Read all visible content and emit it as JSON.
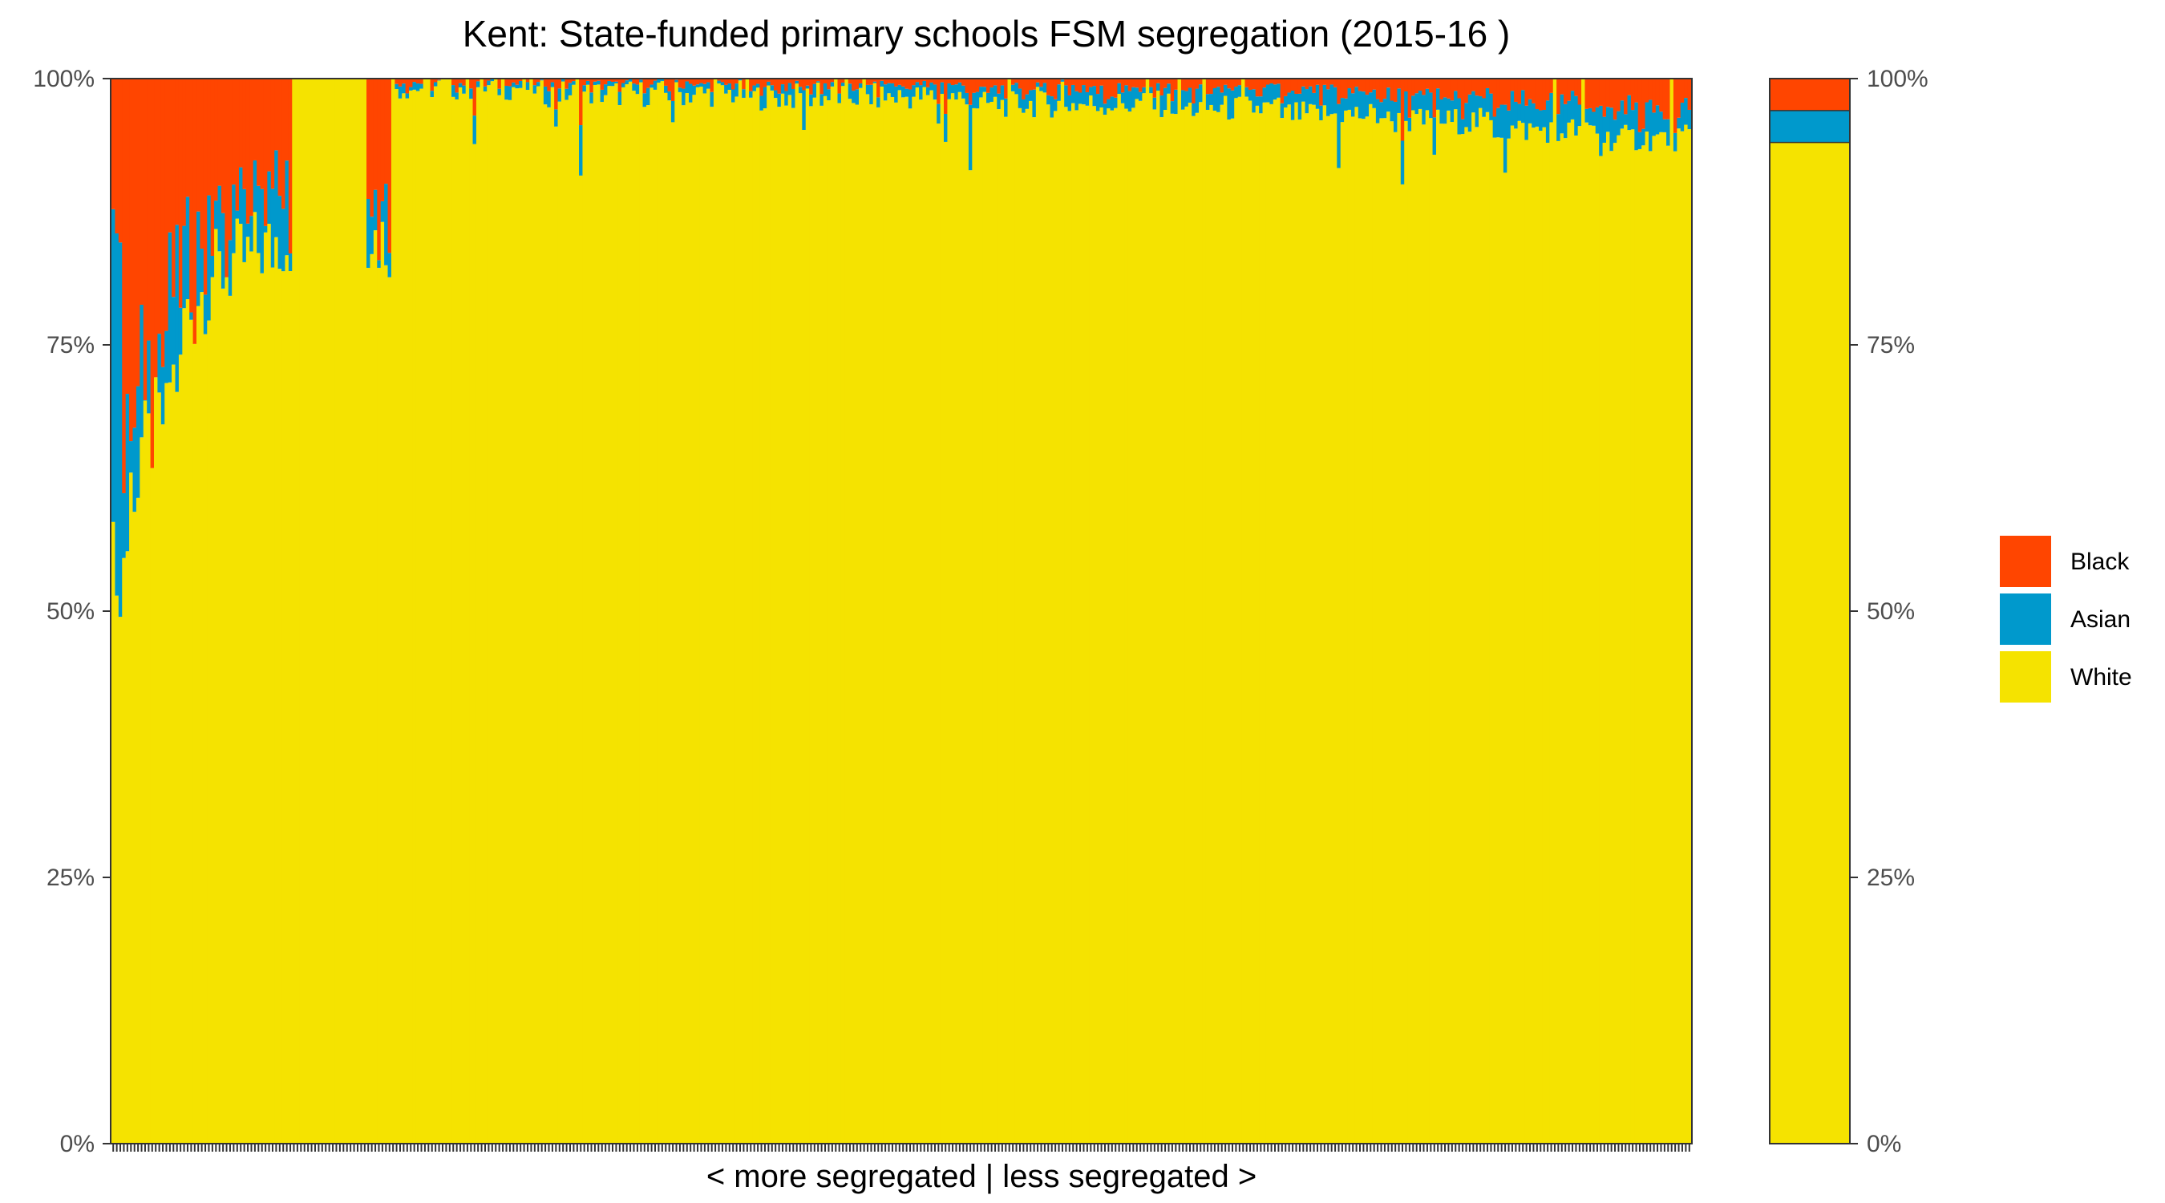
{
  "chart_data": {
    "type": "bar",
    "stacked": true,
    "normalized": true,
    "title": "Kent: State-funded primary schools FSM segregation (2015-16 )",
    "xlabel": "< more segregated | less segregated >",
    "ylabel": "",
    "ylim": [
      0,
      100
    ],
    "y_ticks": [
      "0%",
      "25%",
      "50%",
      "75%",
      "100%"
    ],
    "y_tick_values": [
      0,
      25,
      50,
      75,
      100
    ],
    "legend_position": "right",
    "legend": [
      "Black",
      "Asian",
      "White"
    ],
    "colors": {
      "Black": "#ff4500",
      "Asian": "#0099cc",
      "White": "#f5e300"
    },
    "school_count": 446,
    "school_profile": [
      {
        "from": 0,
        "to": 1,
        "white": 55,
        "asian": 22,
        "black": 23
      },
      {
        "from": 1,
        "to": 2,
        "white": 55,
        "asian": 41,
        "black": 4
      },
      {
        "from": 2,
        "to": 3,
        "white": 49,
        "asian": 44,
        "black": 7
      },
      {
        "from": 3,
        "to": 5,
        "white": 56,
        "asian": 6,
        "black": 38
      },
      {
        "from": 5,
        "to": 8,
        "white": 62,
        "asian": 6,
        "black": 32
      },
      {
        "from": 8,
        "to": 12,
        "white": 66,
        "asian": 5,
        "black": 29
      },
      {
        "from": 12,
        "to": 16,
        "white": 68,
        "asian": 6,
        "black": 26
      },
      {
        "from": 16,
        "to": 20,
        "white": 72,
        "asian": 8,
        "black": 20
      },
      {
        "from": 20,
        "to": 24,
        "white": 78,
        "asian": 5,
        "black": 17
      },
      {
        "from": 24,
        "to": 28,
        "white": 80,
        "asian": 6,
        "black": 14
      },
      {
        "from": 28,
        "to": 34,
        "white": 82,
        "asian": 4,
        "black": 14
      },
      {
        "from": 34,
        "to": 40,
        "white": 83,
        "asian": 4,
        "black": 13
      },
      {
        "from": 40,
        "to": 46,
        "white": 84,
        "asian": 4,
        "black": 12
      },
      {
        "from": 46,
        "to": 51,
        "white": 85,
        "asian": 5,
        "black": 10
      },
      {
        "from": 51,
        "to": 72,
        "white": 100,
        "asian": 0,
        "black": 0
      },
      {
        "from": 72,
        "to": 74,
        "white": 86,
        "asian": 3,
        "black": 11
      },
      {
        "from": 74,
        "to": 79,
        "white": 85,
        "asian": 3,
        "black": 12
      },
      {
        "from": 79,
        "to": 120,
        "white": 99.2,
        "asian": 0.4,
        "black": 0.4
      },
      {
        "from": 120,
        "to": 180,
        "white": 98.6,
        "asian": 0.8,
        "black": 0.6
      },
      {
        "from": 180,
        "to": 240,
        "white": 98.3,
        "asian": 0.9,
        "black": 0.8
      },
      {
        "from": 240,
        "to": 300,
        "white": 97.6,
        "asian": 1.3,
        "black": 1.1
      },
      {
        "from": 300,
        "to": 330,
        "white": 97.2,
        "asian": 1.6,
        "black": 1.2
      },
      {
        "from": 330,
        "to": 360,
        "white": 96.6,
        "asian": 2.0,
        "black": 1.4
      },
      {
        "from": 360,
        "to": 390,
        "white": 96.0,
        "asian": 2.0,
        "black": 2.0
      },
      {
        "from": 390,
        "to": 420,
        "white": 95.2,
        "asian": 2.4,
        "black": 2.4
      },
      {
        "from": 420,
        "to": 446,
        "white": 94.4,
        "asian": 2.6,
        "black": 3.0
      }
    ],
    "overall": {
      "white": 94,
      "asian": 3,
      "black": 3
    }
  }
}
